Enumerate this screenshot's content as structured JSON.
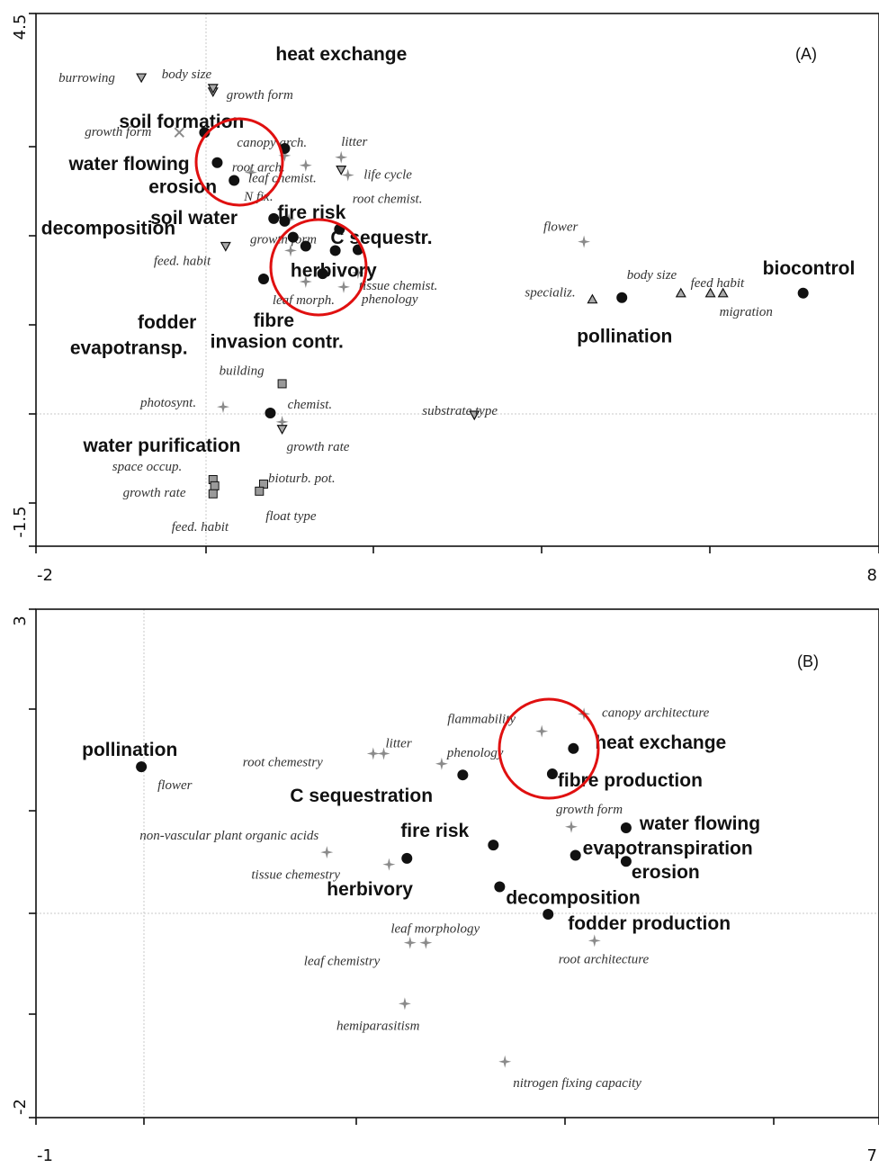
{
  "chart_data": [
    {
      "type": "scatter",
      "panel": "(A)",
      "xlim": [
        -2,
        8
      ],
      "ylim": [
        -1.5,
        4.5
      ],
      "x_tick_labels": [
        "-2",
        "8"
      ],
      "y_tick_labels": [
        "4.5",
        "-1.5"
      ],
      "services": [
        {
          "label": "soil formation",
          "x": 0.0,
          "y": 3.16
        },
        {
          "label": "heat exchange",
          "x": 0.95,
          "y": 2.98
        },
        {
          "label": "water flowing",
          "x": 0.15,
          "y": 2.82
        },
        {
          "label": "erosion",
          "x": 0.35,
          "y": 2.62
        },
        {
          "label": "soil water",
          "x": 0.82,
          "y": 2.19
        },
        {
          "label": "fire risk",
          "x": 0.95,
          "y": 2.16
        },
        {
          "label": "decomposition",
          "x": 1.05,
          "y": 1.98
        },
        {
          "label": "C sequestr.",
          "x": 1.6,
          "y": 2.07
        },
        {
          "label": "herbivory",
          "x": 1.82,
          "y": 1.84
        },
        {
          "label": "fodder",
          "x": 0.7,
          "y": 1.51
        },
        {
          "label": "fibre",
          "x": 1.4,
          "y": 1.57
        },
        {
          "label": "evapotransp.",
          "x": 1.2,
          "y": 1.88
        },
        {
          "label": "invasion contr.",
          "x": 1.55,
          "y": 1.83
        },
        {
          "label": "pollination",
          "x": 4.95,
          "y": 1.3
        },
        {
          "label": "biocontrol",
          "x": 7.1,
          "y": 1.35
        },
        {
          "label": "water purification",
          "x": 0.78,
          "y": 0.0
        }
      ],
      "traits": [
        {
          "label": "burrowing",
          "x": -0.75,
          "y": 3.78,
          "marker": "triangle-down"
        },
        {
          "label": "body size",
          "x": 0.1,
          "y": 3.62,
          "marker": "triangle-down"
        },
        {
          "label": "growth form",
          "x": 0.1,
          "y": 3.66,
          "marker": "triangle-down"
        },
        {
          "label": "growth form",
          "x": -0.3,
          "y": 3.16,
          "marker": "x"
        },
        {
          "label": "canopy arch.",
          "x": 0.95,
          "y": 2.9,
          "marker": "star"
        },
        {
          "label": "litter",
          "x": 1.62,
          "y": 2.88,
          "marker": "star"
        },
        {
          "label": "life cycle",
          "x": 1.62,
          "y": 2.74,
          "marker": "triangle-down"
        },
        {
          "label": "root arch.",
          "x": 1.2,
          "y": 2.79,
          "marker": "star"
        },
        {
          "label": "leaf chemist.",
          "x": 0.55,
          "y": 2.71,
          "marker": "star"
        },
        {
          "label": "root chemist.",
          "x": 1.7,
          "y": 2.68,
          "marker": "star"
        },
        {
          "label": "N fix.",
          "x": 1.0,
          "y": 2.18,
          "marker": "star"
        },
        {
          "label": "feed. habit",
          "x": 0.25,
          "y": 1.88,
          "marker": "triangle-down"
        },
        {
          "label": "growth form",
          "x": 1.02,
          "y": 1.83,
          "marker": "star"
        },
        {
          "label": "leaf morph.",
          "x": 1.2,
          "y": 1.48,
          "marker": "star"
        },
        {
          "label": "phenology",
          "x": 1.65,
          "y": 1.42,
          "marker": "star"
        },
        {
          "label": "tissue chemist.",
          "x": 1.82,
          "y": 1.58,
          "marker": "star"
        },
        {
          "label": "flower",
          "x": 4.5,
          "y": 1.93,
          "marker": "star"
        },
        {
          "label": "specializ.",
          "x": 4.6,
          "y": 1.28,
          "marker": "triangle-up"
        },
        {
          "label": "body size",
          "x": 5.65,
          "y": 1.35,
          "marker": "triangle-up"
        },
        {
          "label": "feed habit",
          "x": 6.0,
          "y": 1.35,
          "marker": "triangle-up"
        },
        {
          "label": "migration",
          "x": 6.15,
          "y": 1.35,
          "marker": "triangle-up"
        },
        {
          "label": "building",
          "x": 0.92,
          "y": 0.33,
          "marker": "square"
        },
        {
          "label": "photosynt.",
          "x": 0.22,
          "y": 0.07,
          "marker": "star"
        },
        {
          "label": "chemist.",
          "x": 0.92,
          "y": -0.1,
          "marker": "star"
        },
        {
          "label": "growth rate",
          "x": 0.92,
          "y": -0.18,
          "marker": "triangle-down"
        },
        {
          "label": "substrate type",
          "x": 3.2,
          "y": -0.02,
          "marker": "triangle-down"
        },
        {
          "label": "space occup.",
          "x": 0.1,
          "y": -0.75,
          "marker": "square"
        },
        {
          "label": "growth rate",
          "x": 0.12,
          "y": -0.82,
          "marker": "square"
        },
        {
          "label": "feed. habit",
          "x": 0.1,
          "y": -0.91,
          "marker": "square"
        },
        {
          "label": "bioturb. pot.",
          "x": 0.7,
          "y": -0.8,
          "marker": "square"
        },
        {
          "label": "float type",
          "x": 0.65,
          "y": -0.88,
          "marker": "square"
        }
      ]
    },
    {
      "type": "scatter",
      "panel": "(B)",
      "xlim": [
        -1,
        7
      ],
      "ylim": [
        -2,
        3
      ],
      "x_tick_labels": [
        "-1",
        "7"
      ],
      "y_tick_labels": [
        "3",
        "-2"
      ],
      "services": [
        {
          "label": "pollination",
          "x": 0.0,
          "y": 1.45
        },
        {
          "label": "heat exchange",
          "x": 4.1,
          "y": 1.63
        },
        {
          "label": "C sequestration",
          "x": 3.05,
          "y": 1.37
        },
        {
          "label": "fibre production",
          "x": 3.9,
          "y": 1.38
        },
        {
          "label": "water flowing",
          "x": 4.6,
          "y": 0.85
        },
        {
          "label": "fire risk",
          "x": 3.34,
          "y": 0.68
        },
        {
          "label": "evapotranspiration",
          "x": 4.12,
          "y": 0.58
        },
        {
          "label": "erosion",
          "x": 4.6,
          "y": 0.52
        },
        {
          "label": "herbivory",
          "x": 2.52,
          "y": 0.55
        },
        {
          "label": "decomposition",
          "x": 3.4,
          "y": 0.27
        },
        {
          "label": "fodder production",
          "x": 3.86,
          "y": 0.0
        }
      ],
      "traits": [
        {
          "label": "flammability",
          "x": 3.8,
          "y": 1.8,
          "marker": "star"
        },
        {
          "label": "canopy architecture",
          "x": 4.2,
          "y": 1.97,
          "marker": "star"
        },
        {
          "label": "litter",
          "x": 2.3,
          "y": 1.58,
          "marker": "star"
        },
        {
          "label": "root  chemestry",
          "x": 2.2,
          "y": 1.58,
          "marker": "star"
        },
        {
          "label": "phenology",
          "x": 2.85,
          "y": 1.48,
          "marker": "star"
        },
        {
          "label": "flower",
          "x": 0.0,
          "y": 1.45,
          "marker": "star"
        },
        {
          "label": "growth form",
          "x": 4.08,
          "y": 0.86,
          "marker": "star"
        },
        {
          "label": "non-vascular plant organic acids",
          "x": 1.76,
          "y": 0.61,
          "marker": "star"
        },
        {
          "label": "tissue chemestry",
          "x": 2.35,
          "y": 0.49,
          "marker": "star"
        },
        {
          "label": "leaf morphology",
          "x": 2.7,
          "y": -0.28,
          "marker": "star"
        },
        {
          "label": "leaf chemistry",
          "x": 2.55,
          "y": -0.28,
          "marker": "star"
        },
        {
          "label": "root architecture",
          "x": 4.3,
          "y": -0.26,
          "marker": "star"
        },
        {
          "label": "hemiparasitism",
          "x": 2.5,
          "y": -0.88,
          "marker": "star"
        },
        {
          "label": "nitrogen fixing capacity",
          "x": 3.45,
          "y": -1.45,
          "marker": "star"
        }
      ]
    }
  ]
}
